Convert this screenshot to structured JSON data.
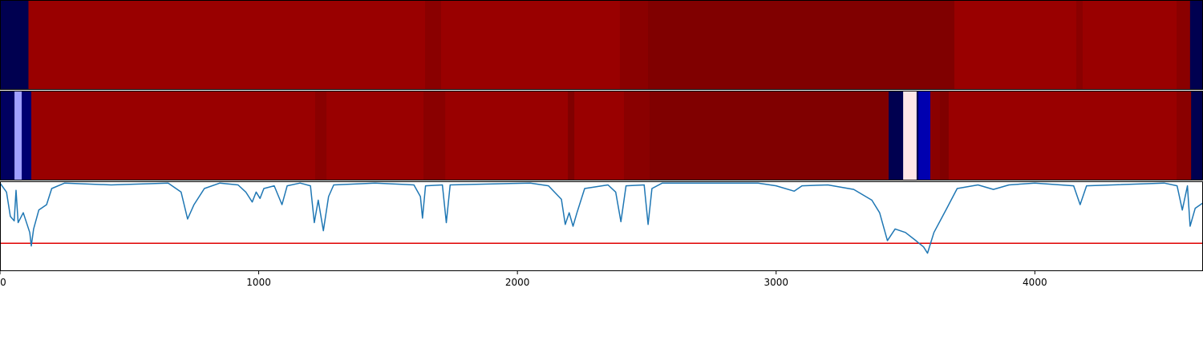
{
  "chart_data": {
    "type": "line",
    "xlim": [
      0,
      4650
    ],
    "ylim": [
      0,
      1
    ],
    "xticks": [
      0,
      1000,
      2000,
      3000,
      4000
    ],
    "strips": [
      {
        "edges": [
          0,
          110,
          1643,
          1705,
          2396,
          2505,
          3689,
          4160,
          4185,
          4548,
          4600,
          4650
        ],
        "colors": [
          "#000050",
          "#990000",
          "#8a0000",
          "#990000",
          "#8a0000",
          "#800000",
          "#990000",
          "#8a0000",
          "#990000",
          "#8a0000",
          "#000050"
        ]
      },
      {
        "edges": [
          0,
          56,
          84,
          121,
          1218,
          1262,
          1637,
          1721,
          2195,
          2220,
          2412,
          2511,
          3435,
          3491,
          3543,
          3550,
          3596,
          3633,
          3667,
          4548,
          4604,
          4650
        ],
        "colors": [
          "#000060",
          "#a0a0ff",
          "#000070",
          "#990000",
          "#8a0000",
          "#990000",
          "#8a0000",
          "#990000",
          "#800000",
          "#990000",
          "#8a0000",
          "#800000",
          "#000050",
          "#ffe8e8",
          "#000050",
          "#0000b0",
          "#8a0000",
          "#800000",
          "#990000",
          "#8a0000",
          "#000050"
        ]
      }
    ],
    "x": [
      0,
      25,
      40,
      55,
      62,
      70,
      90,
      115,
      121,
      130,
      150,
      180,
      200,
      250,
      430,
      650,
      700,
      725,
      750,
      790,
      850,
      920,
      950,
      975,
      990,
      1005,
      1020,
      1060,
      1090,
      1110,
      1160,
      1200,
      1215,
      1230,
      1250,
      1270,
      1290,
      1450,
      1600,
      1625,
      1633,
      1645,
      1710,
      1725,
      1740,
      2050,
      2120,
      2170,
      2185,
      2200,
      2215,
      2230,
      2260,
      2350,
      2380,
      2400,
      2420,
      2490,
      2505,
      2520,
      2560,
      2930,
      3000,
      3070,
      3100,
      3200,
      3300,
      3370,
      3400,
      3430,
      3460,
      3500,
      3540,
      3570,
      3585,
      3610,
      3660,
      3700,
      3780,
      3840,
      3900,
      4000,
      4150,
      4175,
      4200,
      4500,
      4550,
      4570,
      4590,
      4600,
      4620,
      4650
    ],
    "series": [
      {
        "color": "#1f77b4",
        "values": [
          0.98,
          0.88,
          0.61,
          0.56,
          0.9,
          0.54,
          0.65,
          0.43,
          0.28,
          0.47,
          0.68,
          0.74,
          0.92,
          0.98,
          0.96,
          0.98,
          0.88,
          0.58,
          0.74,
          0.92,
          0.98,
          0.96,
          0.88,
          0.77,
          0.88,
          0.81,
          0.92,
          0.95,
          0.74,
          0.95,
          0.98,
          0.95,
          0.54,
          0.79,
          0.45,
          0.83,
          0.96,
          0.98,
          0.96,
          0.83,
          0.59,
          0.95,
          0.96,
          0.54,
          0.96,
          0.98,
          0.95,
          0.8,
          0.52,
          0.65,
          0.5,
          0.65,
          0.92,
          0.96,
          0.88,
          0.55,
          0.95,
          0.96,
          0.52,
          0.92,
          0.98,
          0.98,
          0.95,
          0.89,
          0.95,
          0.96,
          0.91,
          0.79,
          0.65,
          0.34,
          0.47,
          0.43,
          0.34,
          0.27,
          0.2,
          0.43,
          0.7,
          0.92,
          0.96,
          0.91,
          0.96,
          0.98,
          0.95,
          0.74,
          0.95,
          0.98,
          0.95,
          0.68,
          0.95,
          0.5,
          0.7,
          0.76
        ]
      }
    ],
    "reference_line": {
      "value": 0.31,
      "color": "#e00000"
    }
  }
}
